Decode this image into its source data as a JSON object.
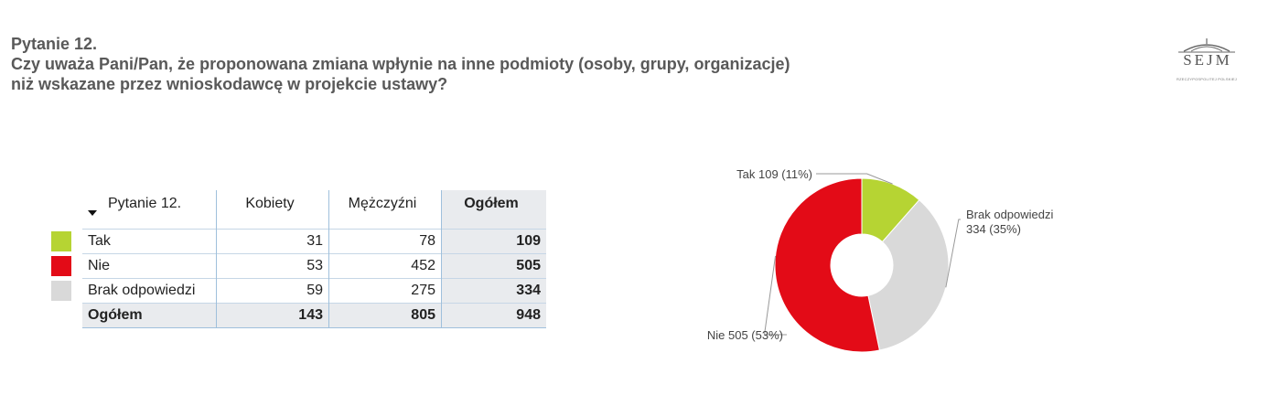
{
  "header": {
    "question_label": "Pytanie 12.",
    "question_line1": "Czy uważa Pani/Pan, że proponowana zmiana wpłynie na inne podmioty (osoby, grupy, organizacje)",
    "question_line2": "niż wskazane przez wnioskodawcę w projekcie ustawy?"
  },
  "logo": {
    "word": "SEJM",
    "subtitle": "RZECZYPOSPOLITEJ POLSKIEJ"
  },
  "table": {
    "headers": [
      "Pytanie 12.",
      "Kobiety",
      "Mężczyźni",
      "Ogółem"
    ],
    "rows": [
      {
        "label": "Tak",
        "color": "#b6d433",
        "values": [
          "31",
          "78",
          "109"
        ]
      },
      {
        "label": "Nie",
        "color": "#e30b17",
        "values": [
          "53",
          "452",
          "505"
        ]
      },
      {
        "label": "Brak odpowiedzi",
        "color": "#d9d9d9",
        "values": [
          "59",
          "275",
          "334"
        ]
      }
    ],
    "total": {
      "label": "Ogółem",
      "values": [
        "143",
        "805",
        "948"
      ]
    }
  },
  "chart_data": {
    "type": "pie",
    "variant": "donut",
    "slices": [
      {
        "label": "Tak",
        "value": 109,
        "percent": 11,
        "color": "#b6d433",
        "text": "Tak 109 (11%)"
      },
      {
        "label": "Brak odpowiedzi",
        "value": 334,
        "percent": 35,
        "color": "#d9d9d9",
        "text_line1": "Brak odpowiedzi",
        "text_line2": "334 (35%)"
      },
      {
        "label": "Nie",
        "value": 505,
        "percent": 53,
        "color": "#e30b17",
        "text": "Nie 505 (53%)"
      }
    ]
  }
}
